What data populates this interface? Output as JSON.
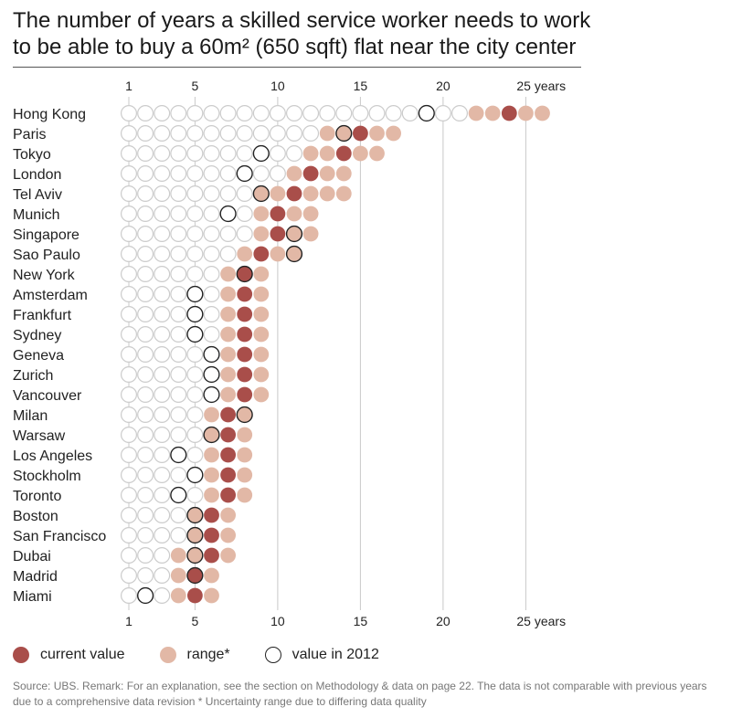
{
  "title_line1": "The number of years a skilled service worker needs to work",
  "title_line2": "to be able to buy a 60m² (650 sqft) flat near the city center",
  "colors": {
    "current": "#a94e4a",
    "range": "#e2b8a6",
    "empty": "#cccccc",
    "v2012": "#222222",
    "grid": "#c8c8c8"
  },
  "chart_data": {
    "type": "dot-range",
    "title": "The number of years a skilled service worker needs to work to be able to buy a 60m² (650 sqft) flat near the city center",
    "x_ticks": [
      1,
      5,
      10,
      15,
      20,
      25
    ],
    "x_tick_labels": [
      "1",
      "5",
      "10",
      "15",
      "20",
      "25 years"
    ],
    "xlim": [
      1,
      26
    ],
    "rows": [
      {
        "city": "Hong Kong",
        "range": [
          22,
          26
        ],
        "current": 24,
        "v2012": 19
      },
      {
        "city": "Paris",
        "range": [
          13,
          17
        ],
        "current": 15,
        "v2012": 14
      },
      {
        "city": "Tokyo",
        "range": [
          12,
          16
        ],
        "current": 14,
        "v2012": 9
      },
      {
        "city": "London",
        "range": [
          11,
          14
        ],
        "current": 12,
        "v2012": 8
      },
      {
        "city": "Tel Aviv",
        "range": [
          9,
          14
        ],
        "current": 11,
        "v2012": 9
      },
      {
        "city": "Munich",
        "range": [
          9,
          12
        ],
        "current": 10,
        "v2012": 7
      },
      {
        "city": "Singapore",
        "range": [
          9,
          12
        ],
        "current": 10,
        "v2012": 11
      },
      {
        "city": "Sao Paulo",
        "range": [
          8,
          11
        ],
        "current": 9,
        "v2012": 11
      },
      {
        "city": "New York",
        "range": [
          7,
          9
        ],
        "current": 8,
        "v2012": 8
      },
      {
        "city": "Amsterdam",
        "range": [
          7,
          9
        ],
        "current": 8,
        "v2012": 5
      },
      {
        "city": "Frankfurt",
        "range": [
          7,
          9
        ],
        "current": 8,
        "v2012": 5
      },
      {
        "city": "Sydney",
        "range": [
          7,
          9
        ],
        "current": 8,
        "v2012": 5
      },
      {
        "city": "Geneva",
        "range": [
          7,
          9
        ],
        "current": 8,
        "v2012": 6
      },
      {
        "city": "Zurich",
        "range": [
          7,
          9
        ],
        "current": 8,
        "v2012": 6
      },
      {
        "city": "Vancouver",
        "range": [
          7,
          9
        ],
        "current": 8,
        "v2012": 6
      },
      {
        "city": "Milan",
        "range": [
          6,
          8
        ],
        "current": 7,
        "v2012": 8
      },
      {
        "city": "Warsaw",
        "range": [
          6,
          8
        ],
        "current": 7,
        "v2012": 6
      },
      {
        "city": "Los Angeles",
        "range": [
          6,
          8
        ],
        "current": 7,
        "v2012": 4
      },
      {
        "city": "Stockholm",
        "range": [
          6,
          8
        ],
        "current": 7,
        "v2012": 5
      },
      {
        "city": "Toronto",
        "range": [
          6,
          8
        ],
        "current": 7,
        "v2012": 4
      },
      {
        "city": "Boston",
        "range": [
          5,
          7
        ],
        "current": 6,
        "v2012": 5
      },
      {
        "city": "San Francisco",
        "range": [
          5,
          7
        ],
        "current": 6,
        "v2012": 5
      },
      {
        "city": "Dubai",
        "range": [
          4,
          7
        ],
        "current": 6,
        "v2012": 5
      },
      {
        "city": "Madrid",
        "range": [
          4,
          6
        ],
        "current": 5,
        "v2012": 5
      },
      {
        "city": "Miami",
        "range": [
          4,
          6
        ],
        "current": 5,
        "v2012": 2
      }
    ],
    "legend": [
      "current value",
      "range*",
      "value in 2012"
    ]
  },
  "legend": {
    "current": "current value",
    "range": "range*",
    "v2012": "value in 2012"
  },
  "source_line1": "Source: UBS. Remark: For an explanation, see the section on Methodology & data on page 22. The data is not comparable with previous years",
  "source_line2": "due to a comprehensive data revision   * Uncertainty range due to differing data quality"
}
